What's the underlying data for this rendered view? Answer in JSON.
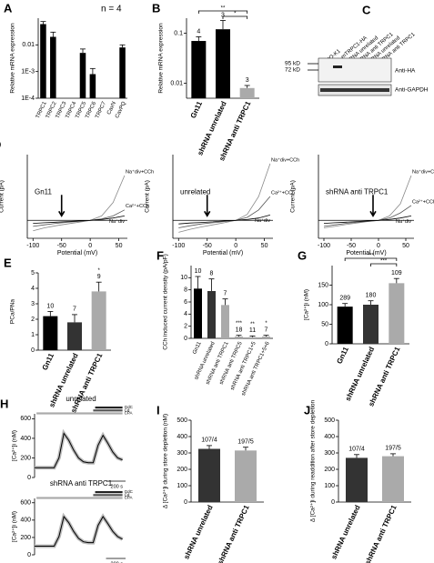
{
  "chart_data": [
    {
      "type": "bar",
      "panel": "A",
      "title": "n = 4",
      "ylabel": "Relative mRNA expression",
      "log": true,
      "categories": [
        "TRPC1",
        "TRPC2",
        "TRPC3",
        "TRPC4",
        "TRPC5",
        "TRPC6",
        "TRPC7",
        "CavN",
        "CavPQ"
      ],
      "values": [
        0.06,
        0.02,
        null,
        null,
        0.005,
        0.0008,
        null,
        null,
        0.008
      ],
      "errors": [
        0.015,
        0.01,
        null,
        null,
        0.002,
        0.0005,
        null,
        null,
        0.002
      ],
      "color": "#000000",
      "ylim": [
        0.0001,
        0.1
      ],
      "yticks": [
        {
          "value": 0.0001,
          "label": "1E-4"
        },
        {
          "value": 0.001,
          "label": "1E-3"
        },
        0.01
      ]
    },
    {
      "type": "bar",
      "panel": "B",
      "ylabel": "Relative mRNA expression",
      "log": true,
      "categories": [
        "Gn11",
        "shRNA unrelated",
        "shRNA anti TRPC1"
      ],
      "values": [
        0.07,
        0.12,
        0.008
      ],
      "errors": [
        0.015,
        0.06,
        0.001
      ],
      "colors": [
        "#000000",
        "#000000",
        "#aaaaaa"
      ],
      "annotations": [
        "4",
        "3",
        "3"
      ],
      "significance": [
        "**",
        "*"
      ],
      "ylim": [
        0.005,
        0.2
      ],
      "yticks": [
        0.01,
        0.1
      ]
    },
    {
      "type": "line",
      "panel": "D",
      "title": "Gn11",
      "xlabel": "Potential (mV)",
      "ylabel": "Current (pA)",
      "x": [
        -100,
        -80,
        -60,
        -40,
        -20,
        0,
        20,
        40,
        60
      ],
      "xlim": [
        -110,
        65
      ],
      "xticks": [
        -100,
        -50,
        0,
        50
      ],
      "ylim": [
        -60,
        220
      ],
      "arrow_x": -50,
      "series": [
        {
          "name": "Na⁺div+CCh",
          "color": "#888888",
          "values": [
            -35,
            -25,
            -18,
            -12,
            -6,
            0,
            15,
            60,
            150
          ]
        },
        {
          "name": "Ca²⁺+CCh",
          "color": "#555555",
          "values": [
            -20,
            -15,
            -10,
            -6,
            -3,
            0,
            5,
            15,
            35
          ]
        },
        {
          "name": "Na⁺div",
          "color": "#000000",
          "values": [
            -10,
            -8,
            -6,
            -4,
            -2,
            0,
            3,
            8,
            15
          ]
        }
      ]
    },
    {
      "type": "line",
      "title": "unrelated",
      "xlabel": "Potential (mV)",
      "ylabel": "Current (pA)",
      "x": [
        -100,
        -80,
        -60,
        -40,
        -20,
        0,
        20,
        40,
        60
      ],
      "xlim": [
        -110,
        65
      ],
      "xticks": [
        -100,
        -50,
        0,
        50
      ],
      "ylim": [
        -60,
        220
      ],
      "arrow_x": -50,
      "series": [
        {
          "name": "Na⁺div+CCh",
          "color": "#888888",
          "values": [
            -40,
            -30,
            -22,
            -15,
            -8,
            0,
            20,
            80,
            190
          ]
        },
        {
          "name": "Ca²⁺+CCh",
          "color": "#555555",
          "values": [
            -25,
            -18,
            -12,
            -8,
            -4,
            0,
            10,
            35,
            80
          ]
        },
        {
          "name": "Na⁺div",
          "color": "#000000",
          "values": [
            -12,
            -9,
            -7,
            -5,
            -2,
            0,
            3,
            8,
            18
          ]
        }
      ]
    },
    {
      "type": "line",
      "title": "shRNA anti TRPC1",
      "xlabel": "Potential (mV)",
      "ylabel": "Current (pA)",
      "x": [
        -100,
        -80,
        -60,
        -40,
        -20,
        0,
        20,
        40,
        60
      ],
      "xlim": [
        -110,
        65
      ],
      "xticks": [
        -100,
        -50,
        0,
        50
      ],
      "ylim": [
        -60,
        220
      ],
      "arrow_x": -10,
      "series": [
        {
          "name": "Na⁺div+CCh",
          "color": "#888888",
          "values": [
            -25,
            -20,
            -14,
            -9,
            -4,
            0,
            15,
            55,
            150
          ]
        },
        {
          "name": "Ca²⁺+CCh",
          "color": "#555555",
          "values": [
            -20,
            -15,
            -10,
            -6,
            -3,
            0,
            8,
            25,
            50
          ]
        },
        {
          "name": "Na⁺div",
          "color": "#000000",
          "values": [
            -10,
            -8,
            -6,
            -4,
            -2,
            0,
            3,
            8,
            15
          ]
        }
      ]
    },
    {
      "type": "bar",
      "panel": "E",
      "ylabel": "PCa/PNa",
      "categories": [
        "Gn11",
        "shRNA unrelated",
        "shRNA anti TRPC1"
      ],
      "values": [
        2.2,
        1.8,
        3.8
      ],
      "errors": [
        0.3,
        0.5,
        0.6
      ],
      "colors": [
        "#000000",
        "#333333",
        "#aaaaaa"
      ],
      "annotations": [
        "10",
        "7",
        "9"
      ],
      "stars": [
        "",
        "",
        "*"
      ],
      "ylim": [
        0,
        5
      ],
      "yticks": [
        0,
        1,
        2,
        3,
        4,
        5
      ]
    },
    {
      "type": "bar",
      "panel": "F",
      "ylabel": "CCh induced current density (pA/pF)",
      "categories": [
        "Gn11",
        "shRNA unrelated",
        "shRNA anti TRPC1",
        "shRNA anti TRPC5",
        "shRNA anti TRPC1+5",
        "shRNA anti TRPC1+5+6"
      ],
      "values": [
        8.2,
        7.8,
        5.5,
        0.3,
        0.2,
        0.3
      ],
      "errors": [
        2,
        2,
        1,
        0.2,
        0.2,
        0.2
      ],
      "colors": [
        "#000000",
        "#333333",
        "#aaaaaa",
        "#aaaaaa",
        "#aaaaaa",
        "#aaaaaa"
      ],
      "annotations": [
        "10",
        "8",
        "7",
        "18",
        "11",
        "7"
      ],
      "stars": [
        "",
        "",
        "",
        "***",
        "**",
        "*"
      ],
      "ylim": [
        0,
        12
      ],
      "yticks": [
        0,
        2,
        4,
        6,
        8,
        10
      ]
    },
    {
      "type": "bar",
      "panel": "G",
      "ylabel": "[Ca²⁺]i (nM)",
      "categories": [
        "Gn11",
        "shRNA unrelated",
        "shRNA anti TRPC1"
      ],
      "values": [
        95,
        100,
        155
      ],
      "errors": [
        8,
        10,
        12
      ],
      "colors": [
        "#000000",
        "#333333",
        "#aaaaaa"
      ],
      "annotations": [
        "289",
        "180",
        "109"
      ],
      "significance": [
        "***",
        "***"
      ],
      "ylim": [
        0,
        200
      ],
      "yticks": [
        0,
        50,
        100,
        150
      ]
    },
    {
      "type": "trace",
      "panel": "H",
      "title": "unrelated",
      "ylabel": "[Ca²⁺]i (nM)",
      "x": [
        0,
        50,
        100,
        150,
        200,
        250,
        300,
        350,
        400,
        450,
        500,
        550,
        600,
        650,
        700,
        750,
        800,
        850,
        900
      ],
      "xlim": [
        0,
        950
      ],
      "ylim": [
        0,
        650
      ],
      "yticks": [
        0,
        200,
        400,
        600
      ],
      "series": [
        {
          "color": "#000000",
          "values": [
            100,
            100,
            100,
            100,
            100,
            200,
            450,
            380,
            280,
            200,
            160,
            150,
            150,
            330,
            430,
            350,
            260,
            200,
            180
          ]
        }
      ],
      "periods": [
        {
          "label": "GdC",
          "start": 620,
          "end": 900
        },
        {
          "label": "Cd",
          "start": 600,
          "end": 900
        },
        {
          "label": "CPA",
          "start": 20,
          "end": 900
        }
      ],
      "scale_bar": {
        "label": "200 s",
        "length": 200
      }
    },
    {
      "type": "trace",
      "title": "shRNA anti TRPC1",
      "ylabel": "[Ca²⁺]i (nM)",
      "x": [
        0,
        50,
        100,
        150,
        200,
        250,
        300,
        350,
        400,
        450,
        500,
        550,
        600,
        650,
        700,
        750,
        800,
        850,
        900
      ],
      "xlim": [
        0,
        950
      ],
      "ylim": [
        0,
        650
      ],
      "yticks": [
        0,
        200,
        400,
        600
      ],
      "series": [
        {
          "color": "#000000",
          "values": [
            100,
            100,
            100,
            100,
            100,
            210,
            440,
            370,
            270,
            190,
            150,
            140,
            140,
            340,
            440,
            360,
            270,
            210,
            180
          ]
        }
      ],
      "periods": [
        {
          "label": "GdC",
          "start": 620,
          "end": 900
        },
        {
          "label": "Cd",
          "start": 600,
          "end": 900
        },
        {
          "label": "CPA",
          "start": 20,
          "end": 900
        }
      ],
      "scale_bar": {
        "label": "200 s",
        "length": 200
      }
    },
    {
      "type": "bar",
      "panel": "I",
      "ylabel": "Δ [Ca²⁺]i during store depletion (nM)",
      "categories": [
        "shRNA unrelated",
        "shRNA anti TRPC1"
      ],
      "values": [
        325,
        315
      ],
      "errors": [
        20,
        20
      ],
      "colors": [
        "#333333",
        "#aaaaaa"
      ],
      "annotations": [
        "107/4",
        "197/5"
      ],
      "ylim": [
        0,
        500
      ],
      "yticks": [
        0,
        100,
        200,
        300,
        400,
        500
      ]
    },
    {
      "type": "bar",
      "panel": "J",
      "ylabel": "Δ [Ca²⁺]i during readdition after store depletion",
      "categories": [
        "shRNA unrelated",
        "shRNA anti TRPC1"
      ],
      "values": [
        270,
        280
      ],
      "errors": [
        20,
        15
      ],
      "colors": [
        "#333333",
        "#aaaaaa"
      ],
      "annotations": [
        "107/4",
        "197/5"
      ],
      "ylim": [
        0,
        500
      ],
      "yticks": [
        0,
        100,
        200,
        300,
        400,
        500
      ]
    }
  ],
  "blot": {
    "panel": "C",
    "lanes": [
      "CHO-K1",
      "HA-mTRPC1-HA",
      "shRNA unrelated",
      "shRNA anti TRPC1",
      "shRNA unrelated",
      "shRNA anti TRPC1"
    ],
    "markers": [
      "95 kD",
      "72 kD"
    ],
    "antibodies": [
      "Anti-HA",
      "Anti-GAPDH"
    ]
  }
}
